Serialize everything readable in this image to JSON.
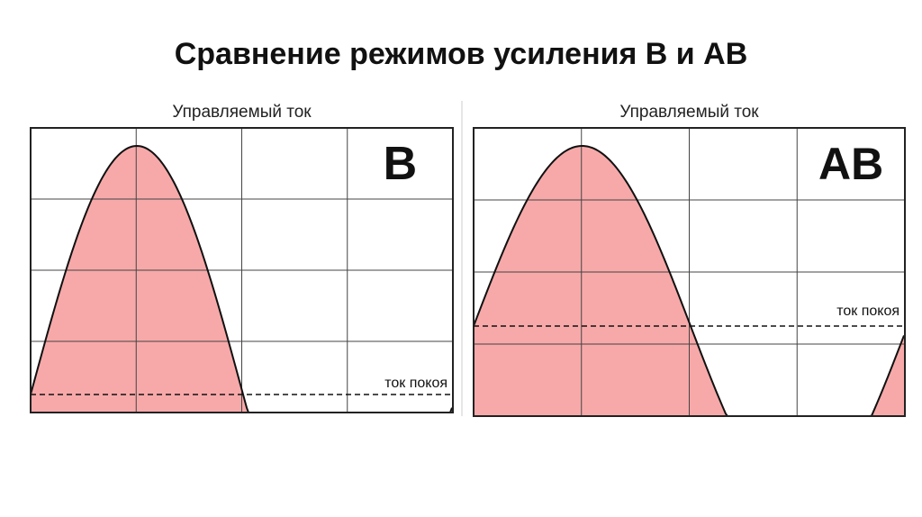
{
  "title": "Сравнение режимов усиления B и AB",
  "panels": [
    {
      "heading": "Управляемый ток",
      "mode": "B",
      "quiescent_label": "ток покоя"
    },
    {
      "heading": "Управляемый ток",
      "mode": "AB",
      "quiescent_label": "ток покоя"
    }
  ]
}
